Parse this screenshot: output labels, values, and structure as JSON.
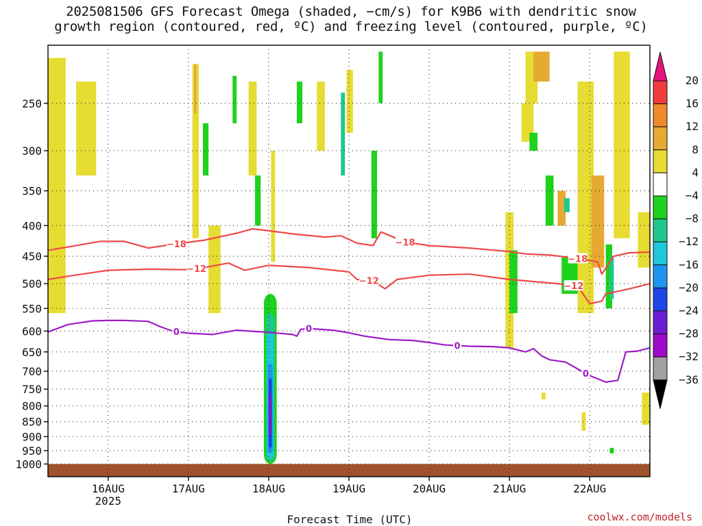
{
  "title_line1": "2025081506 GFS Forecast Omega (shaded, −cm/s) for K9B6 with dendritic snow",
  "title_line2": "growth region (contoured, red, ºC) and freezing level (contoured, purple, ºC)",
  "credit": "coolwx.com/models",
  "chart_data": {
    "type": "heatmap",
    "title": "2025081506 GFS Forecast Omega (shaded, −cm/s) for K9B6 with dendritic snow growth region (contoured, red, ºC) and freezing level (contoured, purple, ºC)",
    "xlabel": "Forecast Time (UTC)",
    "ylabel": "",
    "x_range_days": [
      15.25,
      22.75
    ],
    "y_log_scale": true,
    "y_range_hpa": [
      1050,
      200
    ],
    "x_ticks": [
      {
        "x": 16,
        "label": "16AUG",
        "sublabel": "2025"
      },
      {
        "x": 17,
        "label": "17AUG",
        "sublabel": ""
      },
      {
        "x": 18,
        "label": "18AUG",
        "sublabel": ""
      },
      {
        "x": 19,
        "label": "19AUG",
        "sublabel": ""
      },
      {
        "x": 20,
        "label": "20AUG",
        "sublabel": ""
      },
      {
        "x": 21,
        "label": "21AUG",
        "sublabel": ""
      },
      {
        "x": 22,
        "label": "22AUG",
        "sublabel": ""
      }
    ],
    "y_ticks": [
      250,
      300,
      350,
      400,
      450,
      500,
      550,
      600,
      650,
      700,
      750,
      800,
      850,
      900,
      950,
      1000
    ],
    "grid": true,
    "colorbar": {
      "labels": [
        "20",
        "16",
        "12",
        "8",
        "4",
        "−4",
        "−8",
        "−12",
        "−16",
        "−20",
        "−24",
        "−28",
        "−32",
        "−36"
      ],
      "bands": [
        {
          "from": 16,
          "to": 20,
          "color": "#f03c3c"
        },
        {
          "from": 12,
          "to": 16,
          "color": "#f08a28"
        },
        {
          "from": 8,
          "to": 12,
          "color": "#e6aa32"
        },
        {
          "from": 4,
          "to": 8,
          "color": "#e6dc32"
        },
        {
          "from": -4,
          "to": 4,
          "color": "#ffffff"
        },
        {
          "from": -8,
          "to": -4,
          "color": "#1ed21e"
        },
        {
          "from": -12,
          "to": -8,
          "color": "#1ec88c"
        },
        {
          "from": -16,
          "to": -12,
          "color": "#1ec8dc"
        },
        {
          "from": -20,
          "to": -16,
          "color": "#1e96f0"
        },
        {
          "from": -24,
          "to": -20,
          "color": "#1e46e6"
        },
        {
          "from": -28,
          "to": -24,
          "color": "#6e1ed2"
        },
        {
          "from": -32,
          "to": -28,
          "color": "#a00ac8"
        },
        {
          "from": -36,
          "to": -32,
          "color": "#a0a0a0"
        }
      ],
      "over_color": "#e6147d",
      "under_color": "#000000"
    },
    "omega_regions": [
      {
        "x0": 15.25,
        "x1": 15.47,
        "p0": 210,
        "p1": 560,
        "omega": 5
      },
      {
        "x0": 15.6,
        "x1": 15.85,
        "p0": 230,
        "p1": 330,
        "omega": 5
      },
      {
        "x0": 17.05,
        "x1": 17.13,
        "p0": 215,
        "p1": 420,
        "omega": 5
      },
      {
        "x0": 17.07,
        "x1": 17.1,
        "p0": 215,
        "p1": 260,
        "omega": 10
      },
      {
        "x0": 17.18,
        "x1": 17.25,
        "p0": 270,
        "p1": 330,
        "omega": -6
      },
      {
        "x0": 17.25,
        "x1": 17.4,
        "p0": 400,
        "p1": 560,
        "omega": 5
      },
      {
        "x0": 17.55,
        "x1": 17.6,
        "p0": 225,
        "p1": 270,
        "omega": -6
      },
      {
        "x0": 17.75,
        "x1": 17.85,
        "p0": 230,
        "p1": 330,
        "omega": 5
      },
      {
        "x0": 17.83,
        "x1": 17.9,
        "p0": 330,
        "p1": 400,
        "omega": -6
      },
      {
        "x0": 18.03,
        "x1": 18.08,
        "p0": 300,
        "p1": 460,
        "omega": 5
      },
      {
        "x0": 18.35,
        "x1": 18.42,
        "p0": 230,
        "p1": 270,
        "omega": -6
      },
      {
        "x0": 18.6,
        "x1": 18.7,
        "p0": 230,
        "p1": 300,
        "omega": 5
      },
      {
        "x0": 18.9,
        "x1": 18.95,
        "p0": 240,
        "p1": 330,
        "omega": -10
      },
      {
        "x0": 18.97,
        "x1": 19.05,
        "p0": 220,
        "p1": 280,
        "omega": 5
      },
      {
        "x0": 19.28,
        "x1": 19.35,
        "p0": 300,
        "p1": 420,
        "omega": -6
      },
      {
        "x0": 19.37,
        "x1": 19.42,
        "p0": 205,
        "p1": 250,
        "omega": -6
      },
      {
        "x0": 20.95,
        "x1": 21.05,
        "p0": 380,
        "p1": 640,
        "omega": 5
      },
      {
        "x0": 21.0,
        "x1": 21.1,
        "p0": 440,
        "p1": 560,
        "omega": -6
      },
      {
        "x0": 21.2,
        "x1": 21.35,
        "p0": 205,
        "p1": 250,
        "omega": 5
      },
      {
        "x0": 21.3,
        "x1": 21.5,
        "p0": 205,
        "p1": 230,
        "omega": 10
      },
      {
        "x0": 21.15,
        "x1": 21.3,
        "p0": 250,
        "p1": 290,
        "omega": 5
      },
      {
        "x0": 21.25,
        "x1": 21.35,
        "p0": 280,
        "p1": 300,
        "omega": -6
      },
      {
        "x0": 21.45,
        "x1": 21.55,
        "p0": 330,
        "p1": 400,
        "omega": -6
      },
      {
        "x0": 21.6,
        "x1": 21.7,
        "p0": 350,
        "p1": 400,
        "omega": 10
      },
      {
        "x0": 21.68,
        "x1": 21.75,
        "p0": 360,
        "p1": 380,
        "omega": -12
      },
      {
        "x0": 21.65,
        "x1": 21.85,
        "p0": 450,
        "p1": 520,
        "omega": -6
      },
      {
        "x0": 21.85,
        "x1": 22.05,
        "p0": 230,
        "p1": 560,
        "omega": 5
      },
      {
        "x0": 22.02,
        "x1": 22.18,
        "p0": 330,
        "p1": 470,
        "omega": 10
      },
      {
        "x0": 22.2,
        "x1": 22.28,
        "p0": 430,
        "p1": 550,
        "omega": -6
      },
      {
        "x0": 22.25,
        "x1": 22.3,
        "p0": 450,
        "p1": 530,
        "omega": -12
      },
      {
        "x0": 22.3,
        "x1": 22.5,
        "p0": 205,
        "p1": 420,
        "omega": 5
      },
      {
        "x0": 22.6,
        "x1": 22.75,
        "p0": 380,
        "p1": 470,
        "omega": 5
      },
      {
        "x0": 22.65,
        "x1": 22.75,
        "p0": 760,
        "p1": 860,
        "omega": 5
      },
      {
        "x0": 22.25,
        "x1": 22.3,
        "p0": 940,
        "p1": 960,
        "omega": -6
      },
      {
        "x0": 21.9,
        "x1": 21.95,
        "p0": 820,
        "p1": 880,
        "omega": 5
      },
      {
        "x0": 21.4,
        "x1": 21.45,
        "p0": 760,
        "p1": 780,
        "omega": 5
      }
    ],
    "omega_plume": {
      "x_center": 18.02,
      "p_top": 520,
      "p_bottom": 1000,
      "cores": [
        {
          "half_width": 0.08,
          "p0": 520,
          "p1": 1000,
          "omega": -6
        },
        {
          "half_width": 0.055,
          "p0": 560,
          "p1": 990,
          "omega": -10
        },
        {
          "half_width": 0.04,
          "p0": 600,
          "p1": 980,
          "omega": -14
        },
        {
          "half_width": 0.03,
          "p0": 680,
          "p1": 960,
          "omega": -18
        },
        {
          "half_width": 0.02,
          "p0": 720,
          "p1": 940,
          "omega": -22
        },
        {
          "half_width": 0.015,
          "p0": 760,
          "p1": 900,
          "omega": -26
        },
        {
          "half_width": 0.01,
          "p0": 780,
          "p1": 880,
          "omega": -30
        }
      ]
    },
    "series": [
      {
        "name": "-18",
        "color": "#f04848",
        "points": [
          [
            15.25,
            440
          ],
          [
            15.6,
            432
          ],
          [
            15.9,
            425
          ],
          [
            16.2,
            425
          ],
          [
            16.5,
            436
          ],
          [
            16.8,
            430
          ],
          [
            17.2,
            423
          ],
          [
            17.6,
            412
          ],
          [
            17.8,
            405
          ],
          [
            18.0,
            408
          ],
          [
            18.3,
            413
          ],
          [
            18.7,
            418
          ],
          [
            18.9,
            416
          ],
          [
            19.1,
            428
          ],
          [
            19.3,
            432
          ],
          [
            19.4,
            410
          ],
          [
            19.7,
            426
          ],
          [
            20.0,
            432
          ],
          [
            20.5,
            436
          ],
          [
            21.0,
            442
          ],
          [
            21.2,
            446
          ],
          [
            21.5,
            448
          ],
          [
            21.75,
            452
          ],
          [
            21.9,
            455
          ],
          [
            22.1,
            460
          ],
          [
            22.15,
            482
          ],
          [
            22.3,
            450
          ],
          [
            22.5,
            444
          ],
          [
            22.75,
            443
          ]
        ]
      },
      {
        "name": "-12",
        "color": "#f04848",
        "points": [
          [
            15.25,
            492
          ],
          [
            15.5,
            486
          ],
          [
            16.0,
            475
          ],
          [
            16.5,
            473
          ],
          [
            17.0,
            474
          ],
          [
            17.2,
            470
          ],
          [
            17.5,
            462
          ],
          [
            17.7,
            475
          ],
          [
            18.0,
            466
          ],
          [
            18.5,
            470
          ],
          [
            19.0,
            478
          ],
          [
            19.1,
            492
          ],
          [
            19.3,
            495
          ],
          [
            19.45,
            510
          ],
          [
            19.6,
            492
          ],
          [
            20.0,
            484
          ],
          [
            20.5,
            482
          ],
          [
            21.0,
            492
          ],
          [
            21.3,
            496
          ],
          [
            21.6,
            500
          ],
          [
            21.85,
            505
          ],
          [
            22.0,
            540
          ],
          [
            22.15,
            535
          ],
          [
            22.2,
            520
          ],
          [
            22.5,
            510
          ],
          [
            22.75,
            500
          ]
        ]
      },
      {
        "name": "0",
        "color": "#9b1cc4",
        "points": [
          [
            15.25,
            602
          ],
          [
            15.5,
            585
          ],
          [
            15.8,
            577
          ],
          [
            16.0,
            576
          ],
          [
            16.2,
            576
          ],
          [
            16.5,
            578
          ],
          [
            16.65,
            590
          ],
          [
            16.8,
            600
          ],
          [
            17.0,
            605
          ],
          [
            17.3,
            608
          ],
          [
            17.6,
            598
          ],
          [
            18.0,
            603
          ],
          [
            18.3,
            608
          ],
          [
            18.35,
            612
          ],
          [
            18.4,
            596
          ],
          [
            18.5,
            594
          ],
          [
            18.8,
            598
          ],
          [
            19.0,
            604
          ],
          [
            19.2,
            612
          ],
          [
            19.5,
            620
          ],
          [
            19.8,
            622
          ],
          [
            20.0,
            627
          ],
          [
            20.2,
            633
          ],
          [
            20.5,
            636
          ],
          [
            20.8,
            637
          ],
          [
            21.0,
            640
          ],
          [
            21.2,
            650
          ],
          [
            21.3,
            642
          ],
          [
            21.4,
            660
          ],
          [
            21.5,
            670
          ],
          [
            21.7,
            676
          ],
          [
            21.9,
            700
          ],
          [
            22.0,
            712
          ],
          [
            22.2,
            730
          ],
          [
            22.35,
            725
          ],
          [
            22.45,
            650
          ],
          [
            22.6,
            648
          ],
          [
            22.75,
            640
          ]
        ]
      }
    ],
    "contour_labels": [
      {
        "series": "-18",
        "text": "−18",
        "x": 16.85
      },
      {
        "series": "-18",
        "text": "−18",
        "x": 19.7
      },
      {
        "series": "-18",
        "text": "−18",
        "x": 21.85
      },
      {
        "series": "-12",
        "text": "−12",
        "x": 17.1
      },
      {
        "series": "-12",
        "text": "−12",
        "x": 19.25
      },
      {
        "series": "-12",
        "text": "−12",
        "x": 21.8
      },
      {
        "series": "0",
        "text": "0",
        "x": 16.85
      },
      {
        "series": "0",
        "text": "0",
        "x": 18.5
      },
      {
        "series": "0",
        "text": "0",
        "x": 20.35
      },
      {
        "series": "0",
        "text": "0",
        "x": 21.95
      }
    ],
    "terrain": {
      "color": "#a0522d",
      "p_top": 1000
    }
  }
}
